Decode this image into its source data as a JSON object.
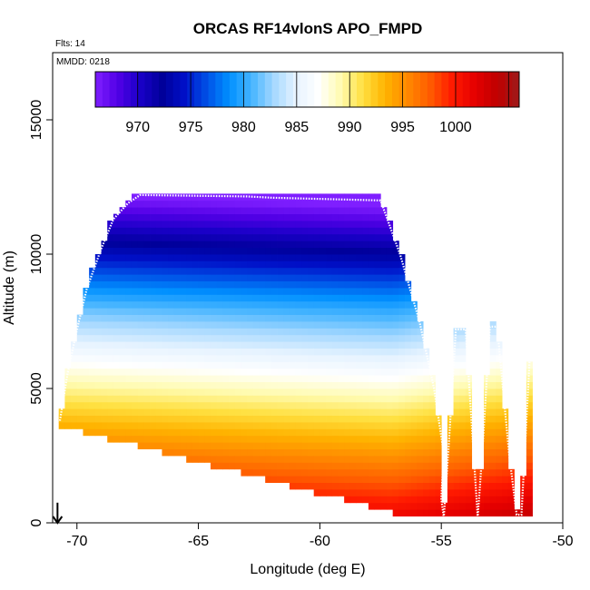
{
  "chart_data": {
    "type": "heatmap",
    "title": "ORCAS RF14vlonS APO_FMPD",
    "flights_note": "Flts: 14",
    "date_note": "MMDD: 0218",
    "xlabel": "Longitude (deg E)",
    "ylabel": "Altitude (m)",
    "xlim": [
      -71,
      -50
    ],
    "ylim": [
      0,
      17500
    ],
    "x_ticks": [
      -70,
      -65,
      -60,
      -55,
      -50
    ],
    "x_tick_labels": [
      "-70",
      "-65",
      "-60",
      "-55",
      "-50"
    ],
    "y_ticks": [
      0,
      5000,
      10000,
      15000
    ],
    "y_tick_labels": [
      "0",
      "5000",
      "10000",
      "15000"
    ],
    "colorbar": {
      "min": 966,
      "max": 1006,
      "ticks": [
        970,
        975,
        980,
        985,
        990,
        995,
        1000
      ],
      "tick_labels": [
        "970",
        "975",
        "980",
        "985",
        "990",
        "995",
        "1000"
      ],
      "colors": [
        "#7f1fff",
        "#5200e6",
        "#1a00c8",
        "#00009a",
        "#0010c8",
        "#0050e6",
        "#0090ff",
        "#45b4ff",
        "#a5d8ff",
        "#e6f3ff",
        "#ffffff",
        "#fffbb0",
        "#ffe040",
        "#ffb300",
        "#ff8800",
        "#ff5c00",
        "#ff1a00",
        "#e60000",
        "#c00000",
        "#9e1a1a"
      ]
    },
    "flight_track": [
      {
        "lon": -70.7,
        "alt": 3800
      },
      {
        "lon": -70.4,
        "alt": 5500
      },
      {
        "lon": -70.0,
        "alt": 7200
      },
      {
        "lon": -69.6,
        "alt": 8700
      },
      {
        "lon": -69.0,
        "alt": 10200
      },
      {
        "lon": -68.5,
        "alt": 11300
      },
      {
        "lon": -67.9,
        "alt": 11900
      },
      {
        "lon": -67.4,
        "alt": 12200
      },
      {
        "lon": -63.0,
        "alt": 12150
      },
      {
        "lon": -62.0,
        "alt": 12100
      },
      {
        "lon": -57.5,
        "alt": 12000
      },
      {
        "lon": -56.7,
        "alt": 10000
      },
      {
        "lon": -55.9,
        "alt": 7500
      },
      {
        "lon": -55.3,
        "alt": 5000
      },
      {
        "lon": -54.9,
        "alt": 2600
      },
      {
        "lon": -55.0,
        "alt": 900
      },
      {
        "lon": -54.9,
        "alt": 200
      },
      {
        "lon": -54.7,
        "alt": 2800
      },
      {
        "lon": -54.4,
        "alt": 7200
      },
      {
        "lon": -54.0,
        "alt": 7200
      },
      {
        "lon": -53.7,
        "alt": 3000
      },
      {
        "lon": -53.5,
        "alt": 200
      },
      {
        "lon": -53.3,
        "alt": 2800
      },
      {
        "lon": -53.0,
        "alt": 7300
      },
      {
        "lon": -52.7,
        "alt": 7300
      },
      {
        "lon": -52.2,
        "alt": 2500
      },
      {
        "lon": -51.9,
        "alt": 300
      },
      {
        "lon": -51.7,
        "alt": 300
      },
      {
        "lon": -51.3,
        "alt": 7200
      }
    ],
    "takeoff_marker": {
      "lon": -70.8
    }
  }
}
